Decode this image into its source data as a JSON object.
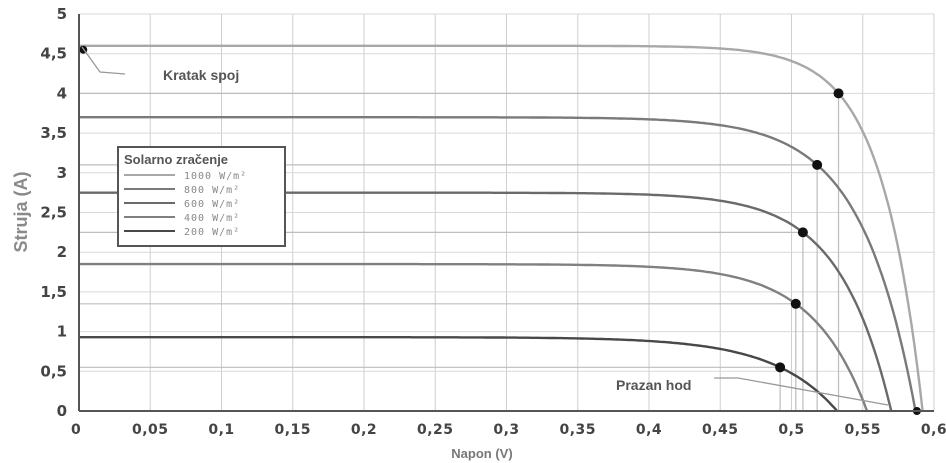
{
  "chart_data": {
    "type": "line",
    "title": "",
    "xlabel": "Napon (V)",
    "ylabel": "Struja (A)",
    "xlim": [
      0,
      0.6
    ],
    "ylim": [
      0,
      5
    ],
    "x_ticks": [
      "0",
      "0,05",
      "0,1",
      "0,15",
      "0,2",
      "0,25",
      "0,3",
      "0,35",
      "0,4",
      "0,45",
      "0,5",
      "0,55",
      "0,6"
    ],
    "y_ticks": [
      "0",
      "0,5",
      "1",
      "1,5",
      "2",
      "2,5",
      "3",
      "3,5",
      "4",
      "4,5",
      "5"
    ],
    "grid": true,
    "legend": {
      "title": "Solarno zračenje",
      "placement": "left",
      "items": [
        "1000 W/m²",
        "800 W/m²",
        "600 W/m²",
        "400 W/m²",
        "200 W/m²"
      ]
    },
    "series": [
      {
        "name": "1000 W/m²",
        "isc": 4.6,
        "voc": 0.592,
        "mpp": [
          0.533,
          4.0
        ],
        "color": "#a8a8a8"
      },
      {
        "name": "800 W/m²",
        "isc": 3.7,
        "voc": 0.587,
        "mpp": [
          0.518,
          3.1
        ],
        "color": "#7a7a7a"
      },
      {
        "name": "600 W/m²",
        "isc": 2.75,
        "voc": 0.57,
        "mpp": [
          0.508,
          2.25
        ],
        "color": "#6a6a6a"
      },
      {
        "name": "400 W/m²",
        "isc": 1.85,
        "voc": 0.553,
        "mpp": [
          0.503,
          1.35
        ],
        "color": "#808080"
      },
      {
        "name": "200 W/m²",
        "isc": 0.93,
        "voc": 0.532,
        "mpp": [
          0.492,
          0.55
        ],
        "color": "#484848"
      }
    ],
    "annotations": [
      {
        "text": "Kratak spoj",
        "x": 0.003,
        "y": 4.55
      },
      {
        "text": "Prazan hod",
        "x": 0.588,
        "y": 0.0
      }
    ]
  }
}
